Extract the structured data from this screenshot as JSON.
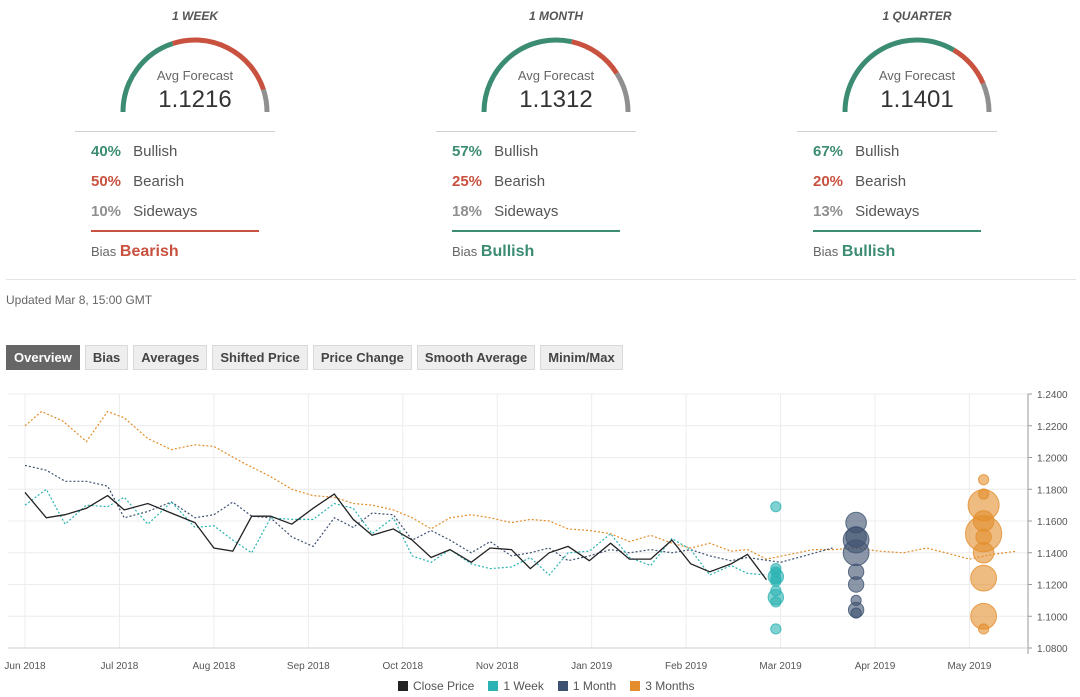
{
  "forecasts": [
    {
      "period": "1 WEEK",
      "avg_label": "Avg Forecast",
      "avg": "1.1216",
      "bullish": "40%",
      "bearish": "50%",
      "sideways": "10%",
      "bias_label": "Bias",
      "bias": "Bearish"
    },
    {
      "period": "1 MONTH",
      "avg_label": "Avg Forecast",
      "avg": "1.1312",
      "bullish": "57%",
      "bearish": "25%",
      "sideways": "18%",
      "bias_label": "Bias",
      "bias": "Bullish"
    },
    {
      "period": "1 QUARTER",
      "avg_label": "Avg Forecast",
      "avg": "1.1401",
      "bullish": "67%",
      "bearish": "20%",
      "sideways": "13%",
      "bias_label": "Bias",
      "bias": "Bullish"
    }
  ],
  "labels": {
    "bullish": "Bullish",
    "bearish": "Bearish",
    "sideways": "Sideways"
  },
  "colors": {
    "bullish": "#3b8c73",
    "bearish": "#c8513f",
    "sideways": "#8f8f8f",
    "close": "#222222",
    "week": "#2bb3b3",
    "month": "#3d5170",
    "quarter": "#e38d2c"
  },
  "updated": "Updated Mar 8, 15:00 GMT",
  "tabs": [
    "Overview",
    "Bias",
    "Averages",
    "Shifted Price",
    "Price Change",
    "Smooth Average",
    "Minim/Max"
  ],
  "active_tab": "Overview",
  "chart_data": {
    "type": "line",
    "x_labels": [
      "Jun 2018",
      "Jul 2018",
      "Aug 2018",
      "Sep 2018",
      "Oct 2018",
      "Nov 2018",
      "Jan 2019",
      "Feb 2019",
      "Mar 2019",
      "Apr 2019",
      "May 2019"
    ],
    "y_ticks": [
      "1.2400",
      "1.2200",
      "1.2000",
      "1.1800",
      "1.1600",
      "1.1400",
      "1.1200",
      "1.1000",
      "1.0800"
    ],
    "ylim": [
      1.08,
      1.24
    ],
    "legend": [
      "Close Price",
      "1 Week",
      "1 Month",
      "3 Months"
    ],
    "series": [
      {
        "name": "Close Price",
        "style": "solid",
        "color": "close",
        "points": [
          [
            0,
            1.178
          ],
          [
            0.45,
            1.162
          ],
          [
            0.85,
            1.164
          ],
          [
            1.3,
            1.168
          ],
          [
            1.75,
            1.176
          ],
          [
            2.1,
            1.167
          ],
          [
            2.6,
            1.171
          ],
          [
            3.1,
            1.165
          ],
          [
            3.6,
            1.159
          ],
          [
            4.0,
            1.143
          ],
          [
            4.4,
            1.141
          ],
          [
            4.8,
            1.163
          ],
          [
            5.2,
            1.163
          ],
          [
            5.65,
            1.158
          ],
          [
            6.1,
            1.168
          ],
          [
            6.55,
            1.177
          ],
          [
            6.95,
            1.161
          ],
          [
            7.35,
            1.151
          ],
          [
            7.8,
            1.155
          ],
          [
            8.2,
            1.148
          ],
          [
            8.6,
            1.137
          ],
          [
            9.0,
            1.142
          ],
          [
            9.45,
            1.134
          ],
          [
            9.85,
            1.143
          ],
          [
            10.3,
            1.142
          ],
          [
            10.7,
            1.13
          ],
          [
            11.1,
            1.14
          ],
          [
            11.5,
            1.144
          ],
          [
            11.95,
            1.135
          ],
          [
            12.4,
            1.146
          ],
          [
            12.8,
            1.136
          ],
          [
            13.25,
            1.136
          ],
          [
            13.7,
            1.148
          ],
          [
            14.1,
            1.133
          ],
          [
            14.5,
            1.128
          ],
          [
            14.95,
            1.133
          ],
          [
            15.3,
            1.139
          ],
          [
            15.7,
            1.123
          ]
        ]
      },
      {
        "name": "1 Week",
        "style": "dotted",
        "color": "week",
        "points": [
          [
            0,
            1.17
          ],
          [
            0.45,
            1.18
          ],
          [
            0.85,
            1.158
          ],
          [
            1.3,
            1.17
          ],
          [
            1.75,
            1.169
          ],
          [
            2.1,
            1.175
          ],
          [
            2.6,
            1.158
          ],
          [
            3.1,
            1.172
          ],
          [
            3.6,
            1.156
          ],
          [
            4.0,
            1.157
          ],
          [
            4.4,
            1.148
          ],
          [
            4.8,
            1.14
          ],
          [
            5.2,
            1.162
          ],
          [
            5.65,
            1.161
          ],
          [
            6.1,
            1.161
          ],
          [
            6.55,
            1.171
          ],
          [
            6.95,
            1.168
          ],
          [
            7.35,
            1.152
          ],
          [
            7.8,
            1.162
          ],
          [
            8.2,
            1.138
          ],
          [
            8.6,
            1.134
          ],
          [
            9.0,
            1.142
          ],
          [
            9.45,
            1.133
          ],
          [
            9.85,
            1.13
          ],
          [
            10.3,
            1.131
          ],
          [
            10.7,
            1.137
          ],
          [
            11.1,
            1.126
          ],
          [
            11.5,
            1.14
          ],
          [
            11.95,
            1.141
          ],
          [
            12.4,
            1.152
          ],
          [
            12.8,
            1.137
          ],
          [
            13.25,
            1.132
          ],
          [
            13.7,
            1.149
          ],
          [
            14.1,
            1.142
          ],
          [
            14.5,
            1.126
          ],
          [
            14.95,
            1.132
          ],
          [
            15.3,
            1.127
          ],
          [
            15.7,
            1.126
          ]
        ]
      },
      {
        "name": "1 Month",
        "style": "dotted",
        "color": "month",
        "points": [
          [
            0,
            1.195
          ],
          [
            0.45,
            1.192
          ],
          [
            0.85,
            1.185
          ],
          [
            1.3,
            1.185
          ],
          [
            1.75,
            1.182
          ],
          [
            2.1,
            1.162
          ],
          [
            2.6,
            1.166
          ],
          [
            3.1,
            1.172
          ],
          [
            3.6,
            1.162
          ],
          [
            4.0,
            1.164
          ],
          [
            4.4,
            1.172
          ],
          [
            4.8,
            1.163
          ],
          [
            5.2,
            1.162
          ],
          [
            5.65,
            1.15
          ],
          [
            6.1,
            1.144
          ],
          [
            6.55,
            1.162
          ],
          [
            6.95,
            1.156
          ],
          [
            7.35,
            1.165
          ],
          [
            7.8,
            1.164
          ],
          [
            8.2,
            1.148
          ],
          [
            8.6,
            1.154
          ],
          [
            9.0,
            1.148
          ],
          [
            9.45,
            1.14
          ],
          [
            9.85,
            1.147
          ],
          [
            10.3,
            1.138
          ],
          [
            10.7,
            1.14
          ],
          [
            11.1,
            1.143
          ],
          [
            11.5,
            1.135
          ],
          [
            11.95,
            1.138
          ],
          [
            12.4,
            1.142
          ],
          [
            12.8,
            1.14
          ],
          [
            13.25,
            1.142
          ],
          [
            13.7,
            1.14
          ],
          [
            14.1,
            1.142
          ],
          [
            14.5,
            1.138
          ],
          [
            14.95,
            1.135
          ],
          [
            15.3,
            1.137
          ],
          [
            16.0,
            1.134
          ],
          [
            16.5,
            1.138
          ],
          [
            17.1,
            1.143
          ]
        ]
      },
      {
        "name": "3 Months",
        "style": "dotted",
        "color": "quarter",
        "points": [
          [
            0,
            1.22
          ],
          [
            0.35,
            1.229
          ],
          [
            0.8,
            1.223
          ],
          [
            1.3,
            1.21
          ],
          [
            1.75,
            1.229
          ],
          [
            2.1,
            1.225
          ],
          [
            2.6,
            1.212
          ],
          [
            3.1,
            1.205
          ],
          [
            3.6,
            1.208
          ],
          [
            4.0,
            1.207
          ],
          [
            4.6,
            1.197
          ],
          [
            5.2,
            1.188
          ],
          [
            5.65,
            1.18
          ],
          [
            6.1,
            1.176
          ],
          [
            6.55,
            1.175
          ],
          [
            6.95,
            1.171
          ],
          [
            7.35,
            1.17
          ],
          [
            7.8,
            1.167
          ],
          [
            8.2,
            1.162
          ],
          [
            8.6,
            1.155
          ],
          [
            9.0,
            1.162
          ],
          [
            9.45,
            1.164
          ],
          [
            9.85,
            1.162
          ],
          [
            10.3,
            1.159
          ],
          [
            10.7,
            1.161
          ],
          [
            11.1,
            1.16
          ],
          [
            11.5,
            1.155
          ],
          [
            11.95,
            1.154
          ],
          [
            12.4,
            1.152
          ],
          [
            12.8,
            1.147
          ],
          [
            13.25,
            1.151
          ],
          [
            13.7,
            1.146
          ],
          [
            14.1,
            1.143
          ],
          [
            14.5,
            1.146
          ],
          [
            14.95,
            1.141
          ],
          [
            15.3,
            1.142
          ],
          [
            15.7,
            1.136
          ],
          [
            16.2,
            1.139
          ],
          [
            16.7,
            1.142
          ],
          [
            17.1,
            1.142
          ],
          [
            17.6,
            1.143
          ],
          [
            18.1,
            1.141
          ],
          [
            18.6,
            1.14
          ],
          [
            19.1,
            1.143
          ],
          [
            19.5,
            1.14
          ],
          [
            20.0,
            1.136
          ],
          [
            20.5,
            1.139
          ],
          [
            21.0,
            1.141
          ]
        ]
      }
    ],
    "forecast_points": [
      {
        "series": "1 Week",
        "x": 15.9,
        "values": [
          [
            1.169,
            1
          ],
          [
            1.13,
            1
          ],
          [
            1.128,
            1
          ],
          [
            1.125,
            2
          ],
          [
            1.124,
            1
          ],
          [
            1.122,
            1
          ],
          [
            1.116,
            1
          ],
          [
            1.112,
            2
          ],
          [
            1.109,
            1
          ],
          [
            1.092,
            1
          ]
        ]
      },
      {
        "series": "1 Month",
        "x": 17.6,
        "values": [
          [
            1.159,
            3
          ],
          [
            1.15,
            3
          ],
          [
            1.148,
            4
          ],
          [
            1.14,
            4
          ],
          [
            1.128,
            2
          ],
          [
            1.12,
            2
          ],
          [
            1.11,
            1
          ],
          [
            1.104,
            2
          ],
          [
            1.102,
            1
          ]
        ]
      },
      {
        "series": "3 Months",
        "x": 20.3,
        "values": [
          [
            1.186,
            1
          ],
          [
            1.177,
            1
          ],
          [
            1.17,
            5
          ],
          [
            1.16,
            3
          ],
          [
            1.152,
            6
          ],
          [
            1.15,
            2
          ],
          [
            1.14,
            3
          ],
          [
            1.124,
            4
          ],
          [
            1.1,
            4
          ],
          [
            1.092,
            1
          ]
        ]
      }
    ]
  }
}
